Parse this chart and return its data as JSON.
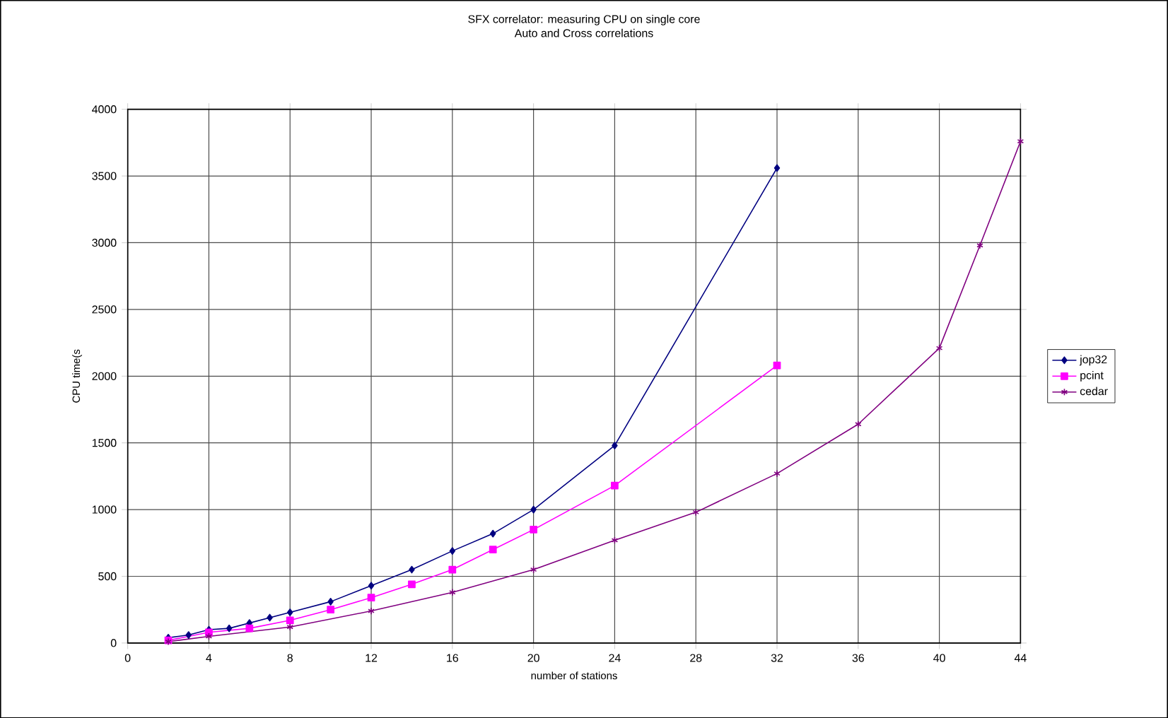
{
  "chart_data": {
    "type": "line",
    "title": "SFX correlator: measuring CPU on single core",
    "subtitle": "Auto and Cross correlations",
    "xlabel": "number of stations",
    "ylabel": "CPU time(s",
    "xlim": [
      0,
      44
    ],
    "xticks": [
      0,
      4,
      8,
      12,
      16,
      20,
      24,
      28,
      32,
      36,
      40,
      44
    ],
    "ylim": [
      0,
      4000
    ],
    "yticks": [
      0,
      500,
      1000,
      1500,
      2000,
      2500,
      3000,
      3500,
      4000
    ],
    "grid": true,
    "legend": "right",
    "series": [
      {
        "name": "jop32",
        "color": "#000080",
        "marker": "diamond",
        "x": [
          2,
          3,
          4,
          5,
          6,
          7,
          8,
          10,
          12,
          14,
          16,
          18,
          20,
          24,
          32
        ],
        "values": [
          40,
          60,
          100,
          110,
          150,
          190,
          230,
          310,
          430,
          550,
          690,
          820,
          1000,
          1480,
          3560
        ]
      },
      {
        "name": "pcint",
        "color": "#ff00ff",
        "marker": "square",
        "x": [
          2,
          4,
          6,
          8,
          10,
          12,
          14,
          16,
          18,
          20,
          24,
          32
        ],
        "values": [
          20,
          80,
          110,
          170,
          250,
          340,
          440,
          550,
          700,
          850,
          1180,
          2080
        ]
      },
      {
        "name": "cedar",
        "color": "#800080",
        "marker": "cross",
        "x": [
          2,
          4,
          8,
          12,
          16,
          20,
          24,
          28,
          32,
          36,
          40,
          42,
          44
        ],
        "values": [
          10,
          50,
          120,
          240,
          380,
          550,
          770,
          980,
          1270,
          1640,
          2210,
          2980,
          3760
        ]
      }
    ]
  }
}
